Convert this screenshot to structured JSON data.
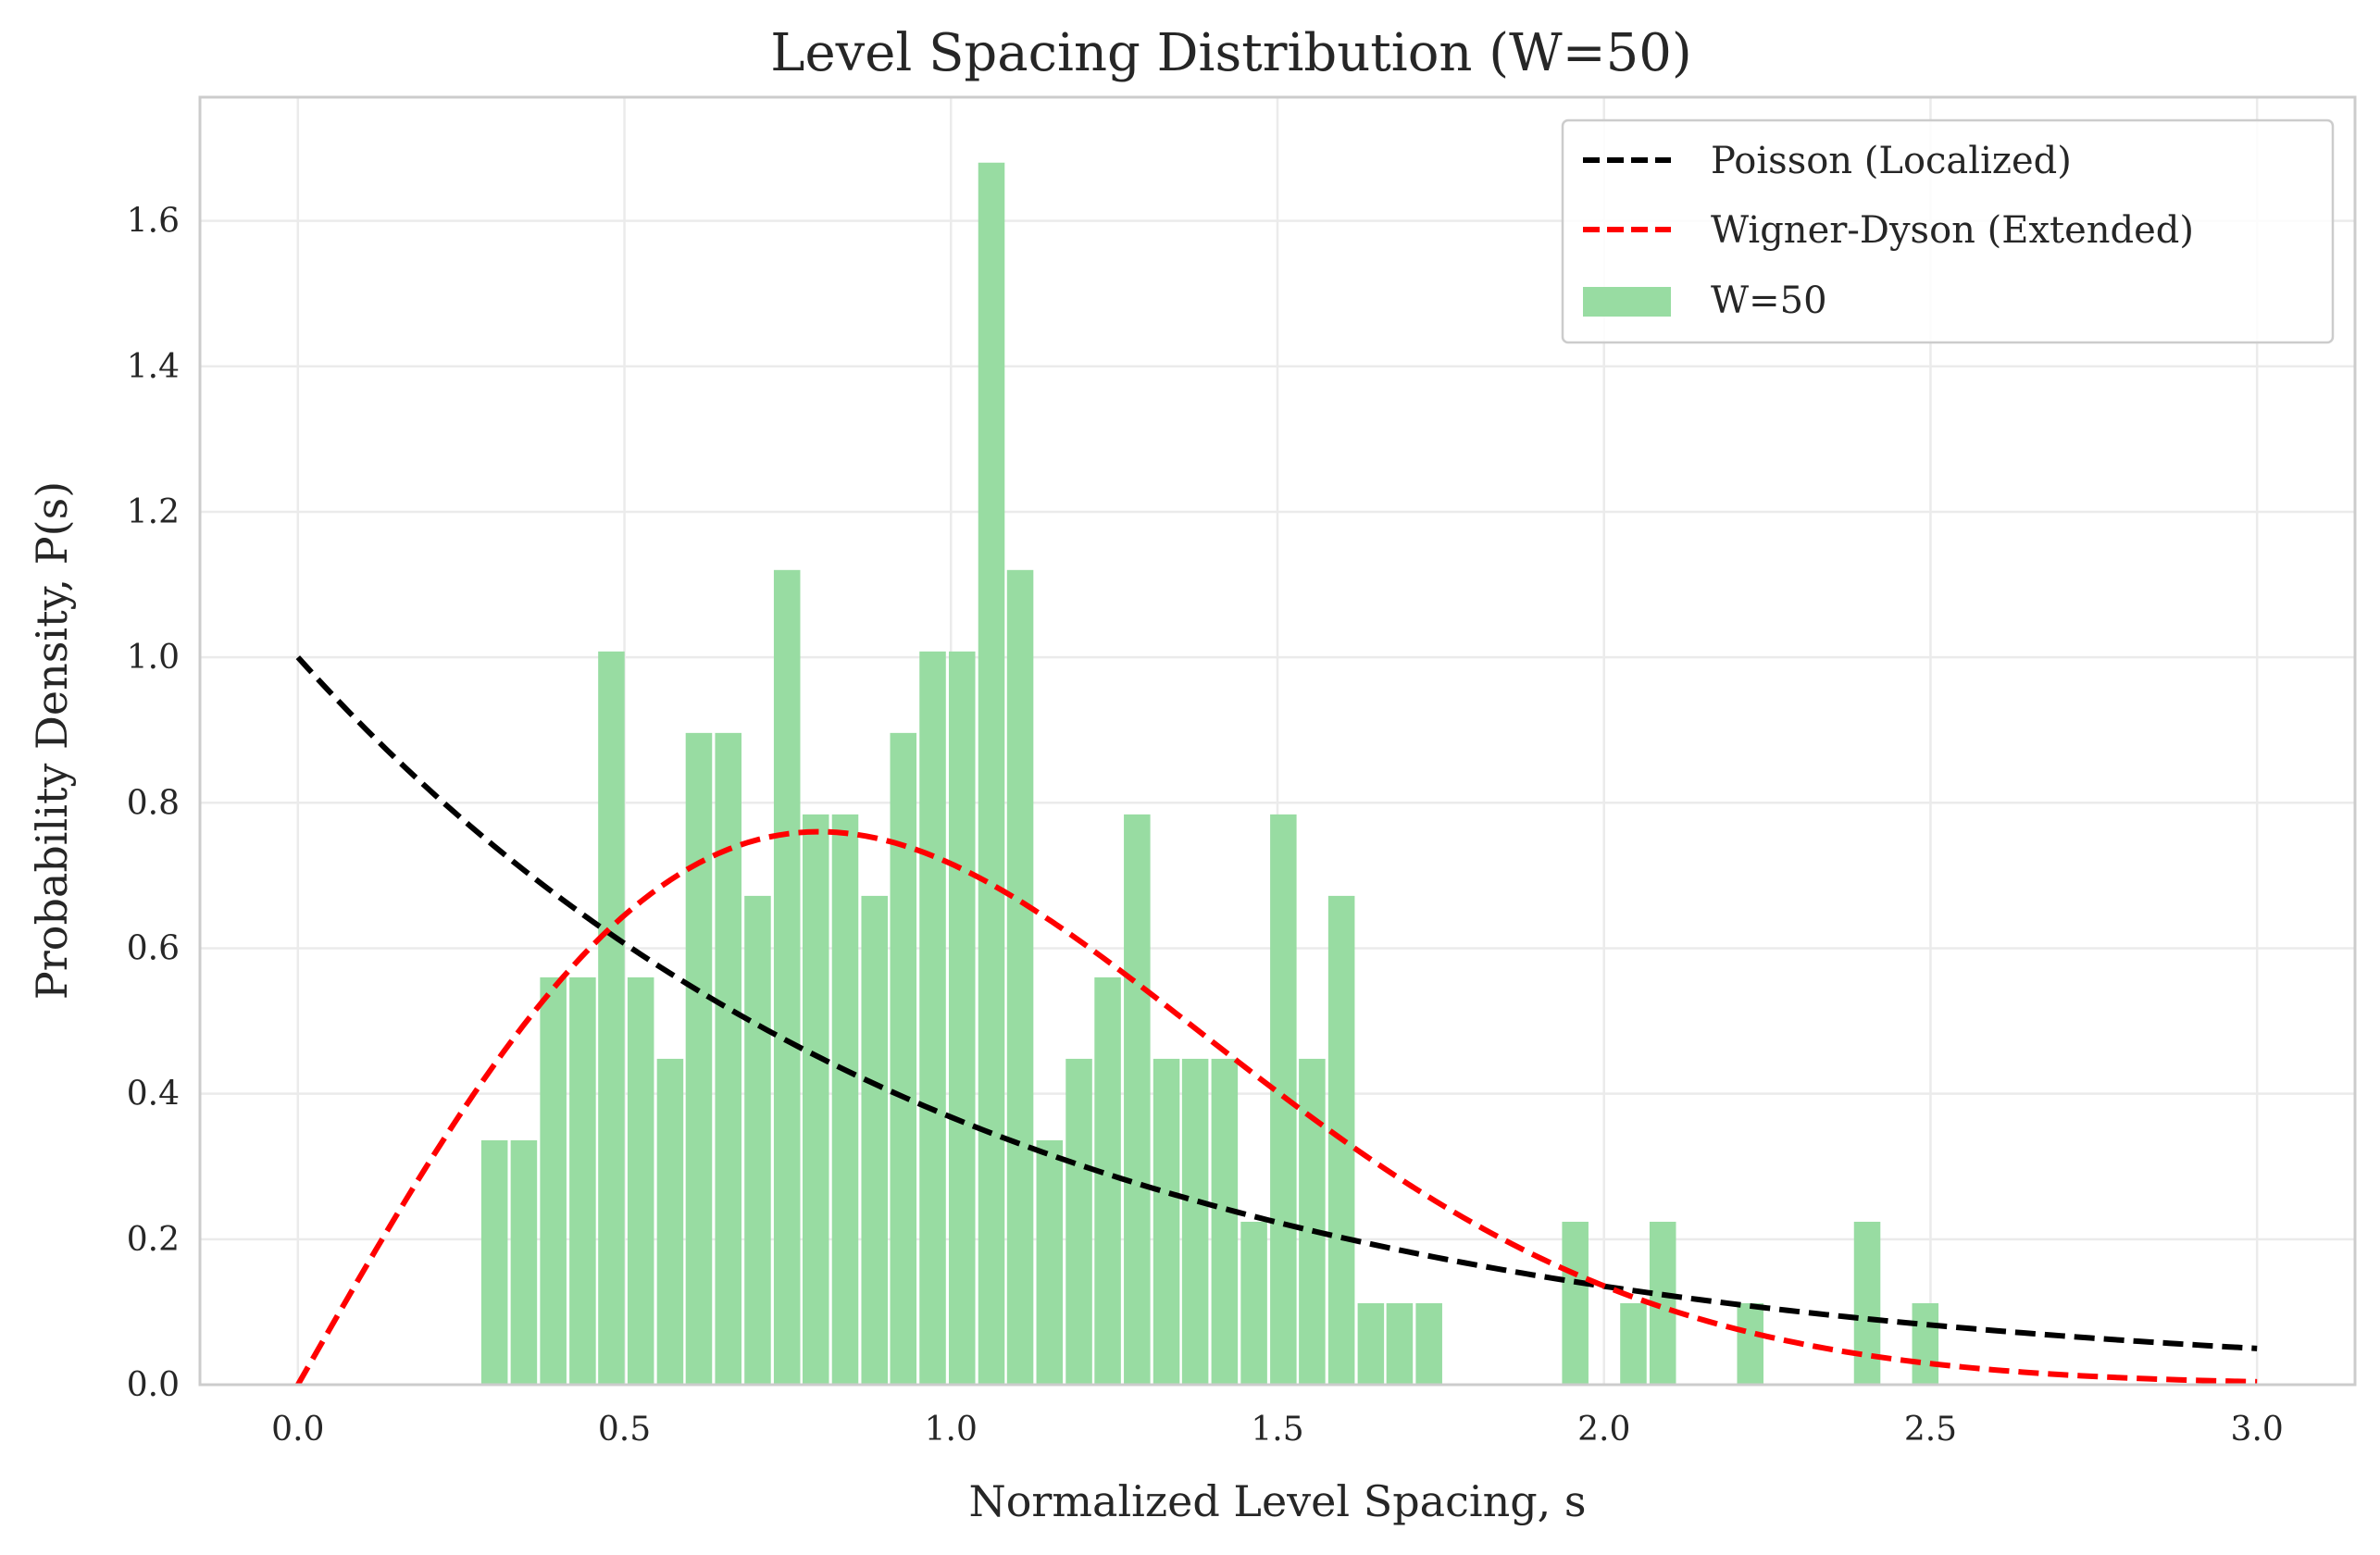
{
  "chart_data": {
    "type": "bar",
    "title": "Level Spacing Distribution (W=50)",
    "xlabel": "Normalized Level Spacing, s",
    "ylabel": "Probability Density, P(s)",
    "xlim": [
      -0.15,
      3.15
    ],
    "ylim": [
      0.0,
      1.77
    ],
    "xticks": [
      "0.0",
      "0.5",
      "1.0",
      "1.5",
      "2.0",
      "2.5",
      "3.0"
    ],
    "yticks": [
      "0.0",
      "0.2",
      "0.4",
      "0.6",
      "0.8",
      "1.0",
      "1.2",
      "1.4",
      "1.6"
    ],
    "grid": true,
    "legend_position": "top-right",
    "histogram": {
      "name": "W=50",
      "color": "#98dca2",
      "bin_width": 0.0447,
      "bins": [
        {
          "center": 0.301,
          "value": 0.336
        },
        {
          "center": 0.346,
          "value": 0.336
        },
        {
          "center": 0.391,
          "value": 0.56
        },
        {
          "center": 0.436,
          "value": 0.56
        },
        {
          "center": 0.48,
          "value": 1.008
        },
        {
          "center": 0.525,
          "value": 0.56
        },
        {
          "center": 0.57,
          "value": 0.448
        },
        {
          "center": 0.614,
          "value": 0.896
        },
        {
          "center": 0.659,
          "value": 0.896
        },
        {
          "center": 0.704,
          "value": 0.672
        },
        {
          "center": 0.749,
          "value": 1.12
        },
        {
          "center": 0.793,
          "value": 0.784
        },
        {
          "center": 0.838,
          "value": 0.784
        },
        {
          "center": 0.883,
          "value": 0.672
        },
        {
          "center": 0.927,
          "value": 0.896
        },
        {
          "center": 0.972,
          "value": 1.008
        },
        {
          "center": 1.017,
          "value": 1.008
        },
        {
          "center": 1.062,
          "value": 1.68
        },
        {
          "center": 1.106,
          "value": 1.12
        },
        {
          "center": 1.151,
          "value": 0.336
        },
        {
          "center": 1.196,
          "value": 0.448
        },
        {
          "center": 1.24,
          "value": 0.56
        },
        {
          "center": 1.285,
          "value": 0.784
        },
        {
          "center": 1.33,
          "value": 0.448
        },
        {
          "center": 1.374,
          "value": 0.448
        },
        {
          "center": 1.419,
          "value": 0.448
        },
        {
          "center": 1.464,
          "value": 0.224
        },
        {
          "center": 1.509,
          "value": 0.784
        },
        {
          "center": 1.553,
          "value": 0.448
        },
        {
          "center": 1.598,
          "value": 0.672
        },
        {
          "center": 1.643,
          "value": 0.112
        },
        {
          "center": 1.687,
          "value": 0.112
        },
        {
          "center": 1.732,
          "value": 0.112
        },
        {
          "center": 1.956,
          "value": 0.224
        },
        {
          "center": 2.045,
          "value": 0.112
        },
        {
          "center": 2.09,
          "value": 0.224
        },
        {
          "center": 2.224,
          "value": 0.112
        },
        {
          "center": 2.403,
          "value": 0.224
        },
        {
          "center": 2.492,
          "value": 0.112
        }
      ]
    },
    "series": [
      {
        "name": "Poisson (Localized)",
        "color": "#000000",
        "style": "dashed",
        "function": "poisson",
        "x_range": [
          0.0,
          3.0
        ]
      },
      {
        "name": "Wigner-Dyson (Extended)",
        "color": "#ff0000",
        "style": "dashed",
        "function": "wigner_dyson",
        "x_range": [
          0.0,
          3.0
        ]
      }
    ],
    "legend": [
      "Poisson (Localized)",
      "Wigner-Dyson (Extended)",
      "W=50"
    ]
  }
}
